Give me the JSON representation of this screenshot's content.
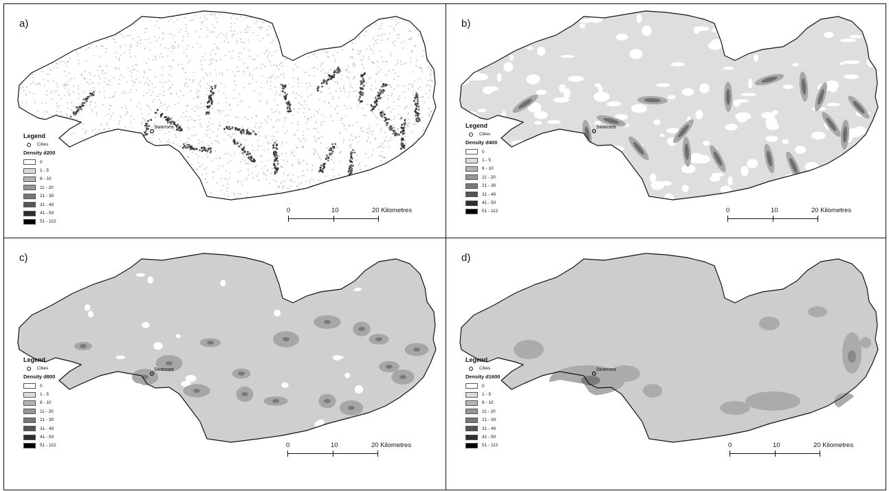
{
  "panels": [
    {
      "label": "a)",
      "legend_title": "Legend",
      "cities_label": "Cities",
      "density_title": "Density d200",
      "city_name": "Swansea",
      "scale": {
        "t0": "0",
        "t1": "10",
        "t2": "20 Kilometres"
      }
    },
    {
      "label": "b)",
      "legend_title": "Legend",
      "cities_label": "Cities",
      "density_title": "Density d400",
      "city_name": "Swansea",
      "scale": {
        "t0": "0",
        "t1": "10",
        "t2": "20 Kilometres"
      }
    },
    {
      "label": "c)",
      "legend_title": "Legend",
      "cities_label": "Cities",
      "density_title": "Density d800",
      "city_name": "Swansea",
      "scale": {
        "t0": "0",
        "t1": "10",
        "t2": "20 Kilometres"
      }
    },
    {
      "label": "d)",
      "legend_title": "Legend",
      "cities_label": "Cities",
      "density_title": "Density d1600",
      "city_name": "Swansea",
      "scale": {
        "t0": "0",
        "t1": "10",
        "t2": "20 Kilometres"
      }
    }
  ],
  "density_classes": [
    {
      "label": "0",
      "color": "#ffffff"
    },
    {
      "label": "1 - 5",
      "color": "#dcdcdc"
    },
    {
      "label": "6 - 10",
      "color": "#b4b4b4"
    },
    {
      "label": "11 - 20",
      "color": "#969696"
    },
    {
      "label": "21 - 30",
      "color": "#787878"
    },
    {
      "label": "31 - 40",
      "color": "#555555"
    },
    {
      "label": "41 - 50",
      "color": "#2e2e2e"
    },
    {
      "label": "51 - 112",
      "color": "#000000"
    }
  ]
}
